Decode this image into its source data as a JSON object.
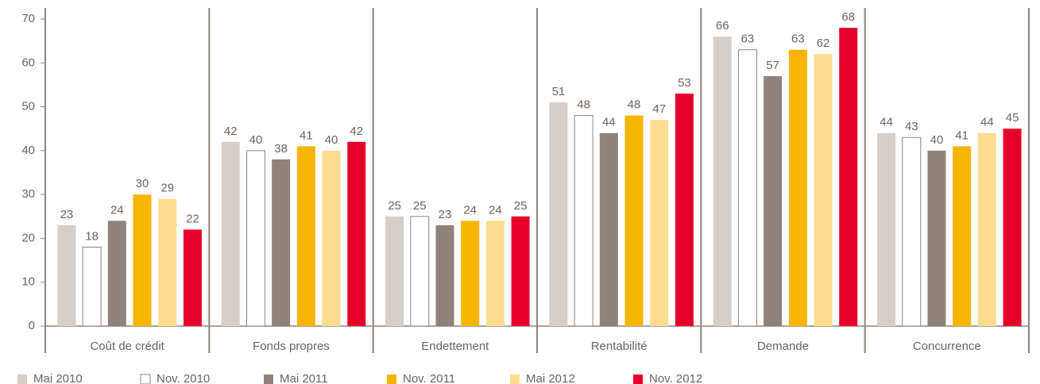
{
  "chart_data": {
    "type": "bar",
    "categories": [
      "Coût de crédit",
      "Fonds propres",
      "Endettement",
      "Rentabilité",
      "Demande",
      "Concurrence"
    ],
    "series": [
      {
        "name": "Mai 2010",
        "color": "#d6cec9",
        "values": [
          23,
          42,
          25,
          51,
          66,
          44
        ]
      },
      {
        "name": "Nov. 2010",
        "color": "#ffffff",
        "values": [
          18,
          40,
          25,
          48,
          63,
          43
        ]
      },
      {
        "name": "Mai 2011",
        "color": "#8f827c",
        "values": [
          24,
          38,
          23,
          44,
          57,
          40
        ]
      },
      {
        "name": "Nov. 2011",
        "color": "#f7b500",
        "values": [
          30,
          41,
          24,
          48,
          63,
          41
        ]
      },
      {
        "name": "Mai 2012",
        "color": "#fddc90",
        "values": [
          29,
          40,
          24,
          47,
          62,
          44
        ]
      },
      {
        "name": "Nov. 2012",
        "color": "#e4002b",
        "values": [
          22,
          42,
          25,
          53,
          68,
          45
        ]
      }
    ],
    "ylim": [
      0,
      70
    ],
    "yticks": [
      0,
      10,
      20,
      30,
      40,
      50,
      60,
      70
    ],
    "legend": "bottom"
  }
}
